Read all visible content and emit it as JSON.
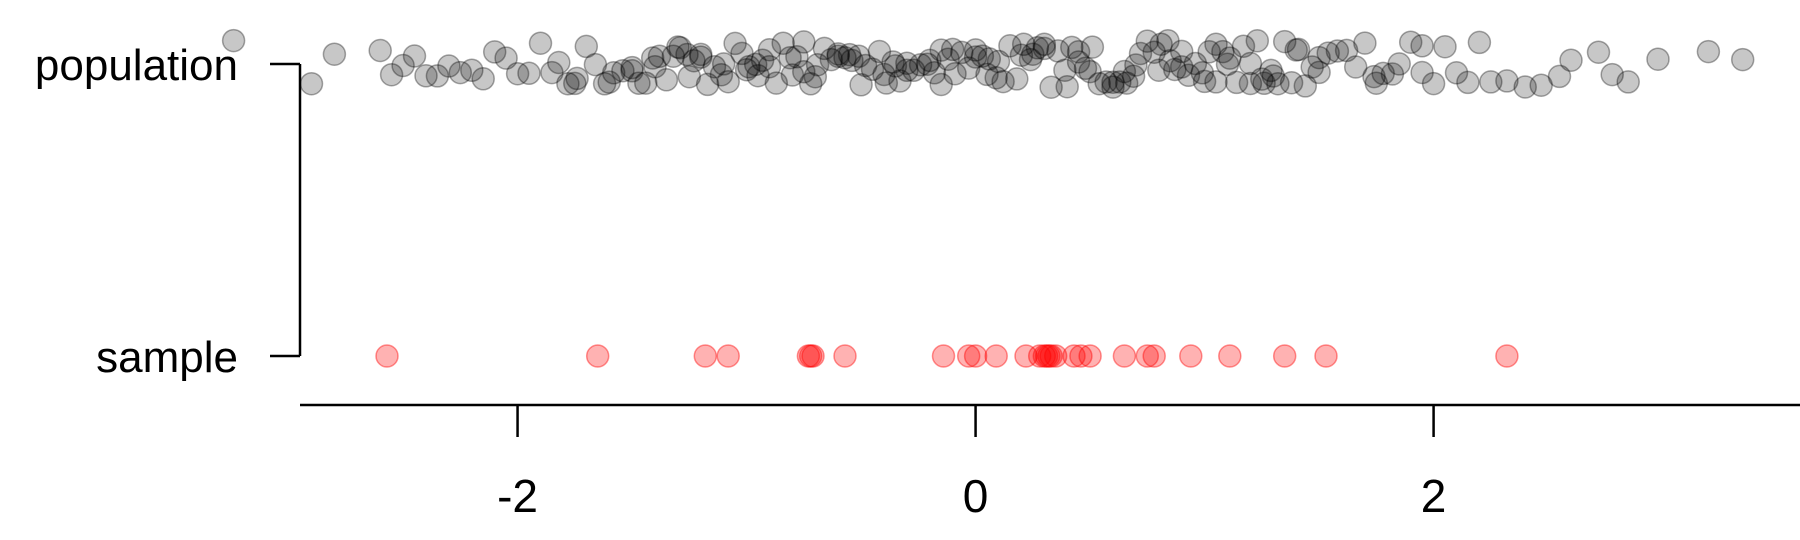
{
  "chart_data": {
    "type": "scatter",
    "title": "",
    "xlabel": "",
    "ylabel": "",
    "grid": false,
    "legend": "none",
    "xlim": [
      -2.95,
      3.6
    ],
    "x_ticks": [
      -2,
      0,
      2
    ],
    "x_tick_labels": [
      "-2",
      "0",
      "2"
    ],
    "categories": [
      "population",
      "sample"
    ],
    "series": [
      {
        "name": "population",
        "color": "#000000",
        "opacity": 0.22,
        "jitter": 0.08,
        "values": [
          -3.24,
          -2.9,
          -2.8,
          -2.6,
          -2.55,
          -2.5,
          -2.45,
          -2.4,
          -2.35,
          -2.3,
          -2.25,
          -2.2,
          -2.15,
          -2.1,
          -2.05,
          -2.0,
          -1.95,
          -1.9,
          -1.85,
          -1.82,
          -1.78,
          -1.74,
          -1.7,
          -1.66,
          -1.62,
          -1.58,
          -1.54,
          -1.5,
          -1.47,
          -1.44,
          -1.41,
          -1.38,
          -1.35,
          -1.32,
          -1.29,
          -1.26,
          -1.23,
          -1.2,
          -1.17,
          -1.14,
          -1.11,
          -1.08,
          -1.05,
          -1.02,
          -0.99,
          -0.96,
          -0.93,
          -0.9,
          -0.87,
          -0.84,
          -0.81,
          -0.78,
          -0.75,
          -0.72,
          -0.69,
          -0.66,
          -0.63,
          -0.6,
          -0.57,
          -0.54,
          -0.51,
          -0.48,
          -0.45,
          -0.42,
          -0.39,
          -0.36,
          -0.33,
          -0.3,
          -0.27,
          -0.24,
          -0.21,
          -0.18,
          -0.15,
          -0.12,
          -0.09,
          -0.06,
          -0.03,
          0.0,
          0.03,
          0.06,
          0.09,
          0.12,
          0.15,
          0.18,
          0.21,
          0.24,
          0.27,
          0.3,
          0.33,
          0.36,
          0.39,
          0.42,
          0.45,
          0.48,
          0.51,
          0.54,
          0.57,
          0.6,
          0.63,
          0.66,
          0.69,
          0.72,
          0.75,
          0.78,
          0.81,
          0.84,
          0.87,
          0.9,
          0.93,
          0.96,
          0.99,
          1.02,
          1.05,
          1.08,
          1.11,
          1.14,
          1.17,
          1.2,
          1.23,
          1.26,
          1.29,
          1.32,
          1.35,
          1.38,
          1.41,
          1.44,
          1.47,
          1.5,
          1.54,
          1.58,
          1.62,
          1.66,
          1.7,
          1.74,
          1.78,
          1.82,
          1.85,
          1.9,
          1.95,
          2.0,
          2.05,
          2.1,
          2.15,
          2.2,
          2.25,
          2.32,
          2.4,
          2.47,
          2.55,
          2.6,
          2.72,
          2.78,
          2.85,
          2.98,
          3.2,
          3.35,
          -1.6,
          -1.4,
          -1.2,
          -1.0,
          -0.8,
          -0.6,
          -0.4,
          -0.2,
          0.0,
          0.2,
          0.4,
          0.6,
          0.8,
          1.0,
          1.2,
          1.4,
          -1.5,
          -1.3,
          -1.1,
          -0.9,
          -0.7,
          -0.5,
          -0.3,
          -0.1,
          0.1,
          0.3,
          0.5,
          0.7,
          0.9,
          1.1,
          1.3,
          1.5,
          -0.95,
          -0.75,
          -0.55,
          -0.35,
          -0.15,
          0.05,
          0.25,
          0.45,
          0.65,
          0.85,
          1.05,
          -1.25,
          1.25,
          -1.75,
          1.75,
          1.95
        ]
      },
      {
        "name": "sample",
        "color": "#ff0000",
        "opacity": 0.3,
        "jitter": 0.0,
        "values": [
          -2.57,
          -1.65,
          -1.18,
          -1.08,
          -0.73,
          -0.72,
          -0.71,
          -0.57,
          -0.14,
          -0.03,
          0.0,
          0.09,
          0.22,
          0.28,
          0.3,
          0.31,
          0.32,
          0.33,
          0.35,
          0.43,
          0.46,
          0.5,
          0.65,
          0.75,
          0.78,
          0.94,
          1.11,
          1.35,
          1.53,
          2.32
        ]
      }
    ]
  }
}
